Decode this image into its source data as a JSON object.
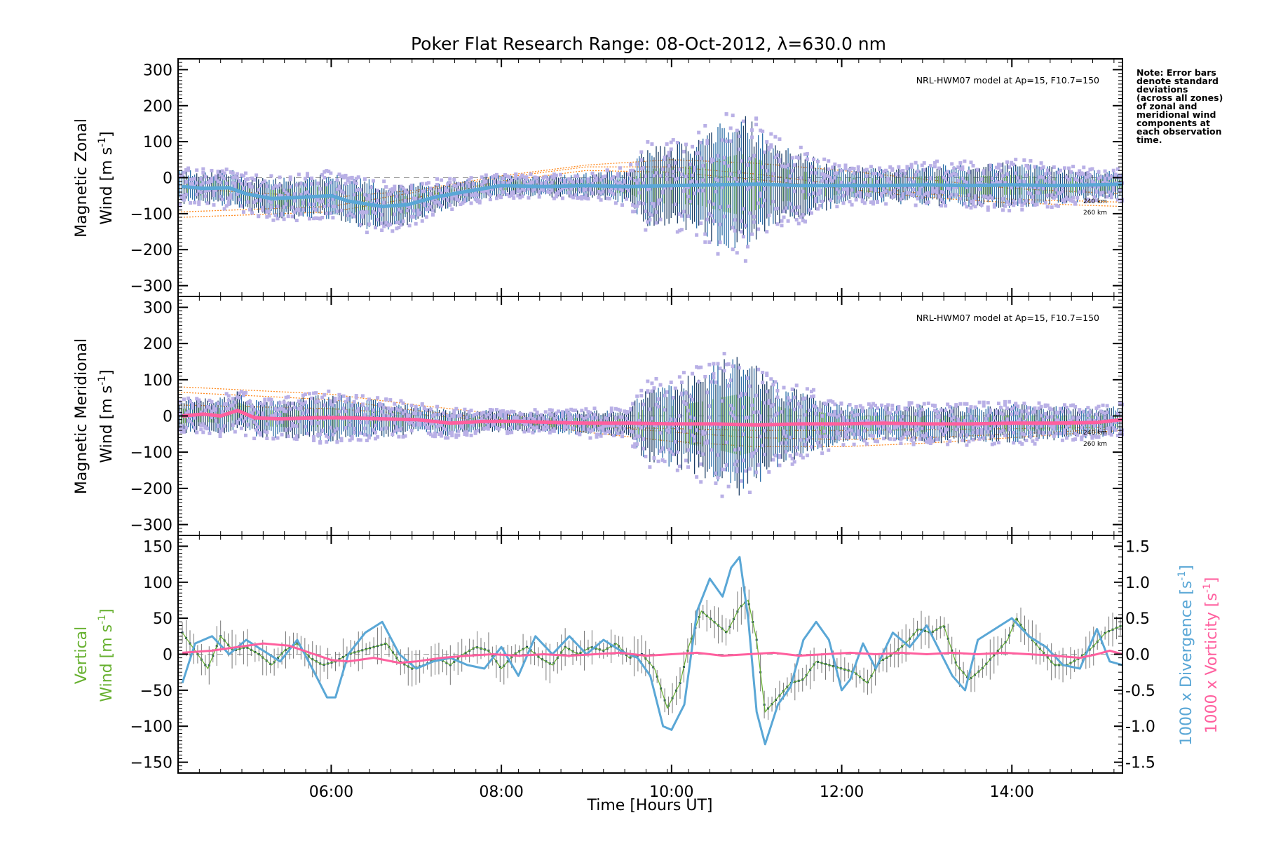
{
  "title": "Poker Flat Research Range: 08-Oct-2012, λ=630.0 nm",
  "note_lines": [
    "Note: Error bars",
    "denote standard",
    "deviations",
    "(across all zones)",
    "of zonal and",
    "meridional wind",
    "components at",
    "each observation",
    "time."
  ],
  "model_label": "NRL-HWM07 model at Ap=15, F10.7=150",
  "altitude_labels": [
    "240 km",
    "260 km"
  ],
  "xlabel": "Time [Hours UT]",
  "colors": {
    "zonal_mean": "#5aa7d6",
    "meridional_mean": "#ff5f9e",
    "scatter": "#b9b0e6",
    "model": "#ff8a1f",
    "vertical": "#66b02e",
    "divergence": "#5aa7d6",
    "vorticity": "#ff5f9e"
  },
  "chart_data": [
    {
      "type": "scatter",
      "panel": "zonal",
      "ylabel_line1": "Magnetic Zonal",
      "ylabel_line2": "Wind [m s",
      "ylabel_sup": "-1",
      "ylabel_tail": "]",
      "xlim": [
        4.2,
        15.3
      ],
      "ylim": [
        -330,
        330
      ],
      "yticks": [
        300,
        200,
        100,
        0,
        -100,
        -200,
        -300
      ],
      "xticks": [
        "06:00",
        "08:00",
        "10:00",
        "12:00",
        "14:00"
      ],
      "xtick_values": [
        6,
        8,
        10,
        12,
        14
      ],
      "mean_series": {
        "x": [
          4.25,
          4.5,
          4.8,
          5.0,
          5.3,
          5.6,
          6.0,
          6.2,
          6.6,
          6.9,
          7.2,
          7.5,
          7.8,
          8.0,
          8.5,
          9.0,
          9.5,
          10.0,
          10.5,
          11.0,
          11.5,
          12.0,
          12.5,
          13.0,
          13.5,
          14.0,
          14.5,
          15.0,
          15.3
        ],
        "y": [
          -25,
          -30,
          -28,
          -45,
          -58,
          -55,
          -50,
          -65,
          -80,
          -75,
          -55,
          -42,
          -30,
          -22,
          -25,
          -22,
          -25,
          -22,
          -20,
          -18,
          -22,
          -22,
          -22,
          -20,
          -22,
          -20,
          -22,
          -20,
          -18
        ]
      },
      "scatter_envelope": {
        "x": [
          4.25,
          5.0,
          5.5,
          6.0,
          6.5,
          7.0,
          7.5,
          8.0,
          8.5,
          9.0,
          9.5,
          9.7,
          10.0,
          10.3,
          10.6,
          10.8,
          11.0,
          11.3,
          11.6,
          12.0,
          12.5,
          13.0,
          13.5,
          14.0,
          14.5,
          15.0,
          15.3
        ],
        "spread": [
          40,
          45,
          50,
          55,
          60,
          45,
          30,
          25,
          25,
          30,
          40,
          95,
          100,
          110,
          150,
          170,
          140,
          90,
          75,
          45,
          40,
          50,
          50,
          55,
          45,
          35,
          35
        ]
      },
      "model_curves": [
        {
          "x": [
            4.25,
            6.0,
            7.0,
            8.0,
            9.0,
            10.0,
            11.0,
            12.0,
            13.0,
            14.0,
            15.3
          ],
          "y": [
            -110,
            -95,
            -55,
            -10,
            20,
            15,
            -5,
            -30,
            -55,
            -70,
            -80
          ]
        },
        {
          "x": [
            4.25,
            6.0,
            7.0,
            8.0,
            9.0,
            10.0,
            11.0,
            12.0,
            13.0,
            14.0,
            15.3
          ],
          "y": [
            -95,
            -80,
            -40,
            0,
            30,
            30,
            10,
            -20,
            -45,
            -60,
            -68
          ]
        },
        {
          "x": [
            4.25,
            6.0,
            7.0,
            8.0,
            9.0,
            10.0,
            11.0,
            12.0,
            13.0,
            14.0,
            15.3
          ],
          "y": [
            -30,
            -55,
            -35,
            5,
            35,
            50,
            40,
            20,
            -5,
            -30,
            -45
          ]
        }
      ]
    },
    {
      "type": "scatter",
      "panel": "meridional",
      "ylabel_line1": "Magnetic Meridional",
      "ylabel_line2": "Wind [m s",
      "ylabel_sup": "-1",
      "ylabel_tail": "]",
      "xlim": [
        4.2,
        15.3
      ],
      "ylim": [
        -330,
        330
      ],
      "yticks": [
        300,
        200,
        100,
        0,
        -100,
        -200,
        -300
      ],
      "mean_series": {
        "x": [
          4.25,
          4.5,
          4.7,
          4.9,
          5.1,
          5.4,
          5.8,
          6.2,
          6.6,
          7.0,
          7.4,
          7.8,
          8.2,
          8.6,
          9.0,
          9.5,
          10.0,
          10.5,
          11.0,
          11.5,
          12.0,
          12.5,
          13.0,
          13.5,
          14.0,
          14.5,
          15.0,
          15.3
        ],
        "y": [
          0,
          5,
          0,
          15,
          -5,
          -8,
          -5,
          -5,
          -8,
          -10,
          -20,
          -15,
          -15,
          -18,
          -20,
          -20,
          -22,
          -22,
          -25,
          -22,
          -22,
          -20,
          -22,
          -22,
          -20,
          -20,
          -18,
          -10
        ]
      },
      "scatter_envelope": {
        "x": [
          4.25,
          5.0,
          5.5,
          6.0,
          6.5,
          7.0,
          7.5,
          8.0,
          8.5,
          9.0,
          9.5,
          9.7,
          10.0,
          10.3,
          10.6,
          10.8,
          11.0,
          11.3,
          11.6,
          12.0,
          12.5,
          13.0,
          13.5,
          14.0,
          14.5,
          15.0,
          15.3
        ],
        "spread": [
          40,
          45,
          45,
          55,
          45,
          35,
          30,
          25,
          25,
          30,
          35,
          90,
          100,
          120,
          150,
          170,
          140,
          90,
          75,
          45,
          40,
          45,
          45,
          45,
          40,
          35,
          35
        ]
      },
      "model_curves": [
        {
          "x": [
            4.25,
            6.0,
            7.0,
            8.0,
            9.0,
            10.0,
            11.0,
            12.0,
            13.0,
            14.0,
            15.3
          ],
          "y": [
            80,
            60,
            30,
            5,
            -25,
            -45,
            -60,
            -65,
            -60,
            -50,
            -35
          ]
        },
        {
          "x": [
            4.25,
            6.0,
            7.0,
            8.0,
            9.0,
            10.0,
            11.0,
            12.0,
            13.0,
            14.0,
            15.3
          ],
          "y": [
            65,
            45,
            15,
            -10,
            -45,
            -70,
            -85,
            -85,
            -75,
            -60,
            -40
          ]
        },
        {
          "x": [
            4.25,
            6.0,
            7.0,
            8.0,
            9.0,
            10.0,
            11.0,
            12.0,
            13.0,
            14.0,
            15.3
          ],
          "y": [
            30,
            20,
            5,
            -15,
            -30,
            -35,
            -40,
            -40,
            -38,
            -35,
            -30
          ]
        }
      ]
    },
    {
      "type": "line",
      "panel": "vertical",
      "ylabel_line1": "Vertical",
      "ylabel_line2": "Wind [m s",
      "ylabel_sup": "-1",
      "ylabel_tail": "]",
      "xlim": [
        4.2,
        15.3
      ],
      "ylim": [
        -165,
        165
      ],
      "yticks": [
        150,
        100,
        50,
        0,
        -50,
        -100,
        -150
      ],
      "xticks": [
        "06:00",
        "08:00",
        "10:00",
        "12:00",
        "14:00"
      ],
      "xtick_values": [
        6,
        8,
        10,
        12,
        14
      ],
      "y2lim": [
        -1.65,
        1.65
      ],
      "y2ticks": [
        "1.5",
        "1.0",
        "0.5",
        "0.0",
        "-0.5",
        "-1.0",
        "-1.5"
      ],
      "y2tick_values": [
        1.5,
        1.0,
        0.5,
        0.0,
        -0.5,
        -1.0,
        -1.5
      ],
      "y2label_div": "1000 x Divergence [s",
      "y2label_vort": "1000 x Vorticity [s",
      "y2label_sup": "-1",
      "y2label_tail": "]",
      "series": [
        {
          "name": "Vertical Wind",
          "x": [
            4.25,
            4.4,
            4.55,
            4.7,
            4.85,
            5.0,
            5.15,
            5.3,
            5.45,
            5.6,
            5.75,
            5.9,
            6.05,
            6.2,
            6.35,
            6.5,
            6.65,
            6.8,
            6.95,
            7.1,
            7.25,
            7.4,
            7.55,
            7.7,
            7.85,
            8.0,
            8.15,
            8.3,
            8.45,
            8.6,
            8.75,
            8.9,
            9.05,
            9.2,
            9.35,
            9.5,
            9.65,
            9.8,
            9.95,
            10.1,
            10.2,
            10.35,
            10.5,
            10.65,
            10.8,
            10.9,
            11.0,
            11.1,
            11.25,
            11.4,
            11.55,
            11.7,
            11.85,
            12.0,
            12.15,
            12.3,
            12.45,
            12.6,
            12.75,
            12.9,
            13.05,
            13.2,
            13.35,
            13.5,
            13.65,
            13.8,
            13.95,
            14.05,
            14.2,
            14.35,
            14.5,
            14.65,
            14.8,
            14.95,
            15.1,
            15.3
          ],
          "y": [
            30,
            5,
            -20,
            25,
            5,
            10,
            0,
            -15,
            5,
            15,
            -5,
            -15,
            -10,
            0,
            5,
            10,
            15,
            -10,
            -20,
            -15,
            -5,
            -15,
            0,
            10,
            5,
            -20,
            0,
            10,
            -5,
            -15,
            10,
            0,
            10,
            5,
            15,
            -5,
            0,
            -20,
            -75,
            -40,
            10,
            60,
            45,
            30,
            65,
            75,
            20,
            -80,
            -60,
            -40,
            -35,
            -10,
            -15,
            -20,
            -25,
            -40,
            -10,
            0,
            15,
            35,
            30,
            40,
            -15,
            -35,
            -20,
            0,
            20,
            50,
            25,
            5,
            -15,
            -15,
            -5,
            10,
            30,
            40
          ]
        },
        {
          "name": "Divergence",
          "axis": "right",
          "x": [
            4.25,
            4.4,
            4.6,
            4.8,
            5.0,
            5.2,
            5.4,
            5.6,
            5.8,
            5.95,
            6.05,
            6.2,
            6.4,
            6.6,
            6.8,
            7.0,
            7.2,
            7.4,
            7.6,
            7.8,
            8.0,
            8.2,
            8.4,
            8.6,
            8.8,
            9.0,
            9.2,
            9.4,
            9.6,
            9.75,
            9.9,
            10.0,
            10.15,
            10.3,
            10.45,
            10.6,
            10.7,
            10.8,
            10.9,
            11.0,
            11.1,
            11.25,
            11.4,
            11.55,
            11.7,
            11.85,
            12.0,
            12.1,
            12.25,
            12.4,
            12.6,
            12.8,
            13.0,
            13.15,
            13.3,
            13.45,
            13.6,
            13.8,
            14.0,
            14.2,
            14.4,
            14.6,
            14.8,
            15.0,
            15.15,
            15.3
          ],
          "y": [
            -0.4,
            0.15,
            0.25,
            0.0,
            0.2,
            0.05,
            -0.1,
            0.2,
            -0.25,
            -0.6,
            -0.6,
            0.0,
            0.3,
            0.45,
            0.0,
            -0.2,
            -0.1,
            -0.05,
            -0.15,
            -0.2,
            0.1,
            -0.3,
            0.25,
            0.0,
            0.25,
            0.0,
            0.2,
            0.05,
            -0.05,
            -0.3,
            -1.0,
            -1.05,
            -0.7,
            0.6,
            1.05,
            0.8,
            1.2,
            1.35,
            0.5,
            -0.8,
            -1.25,
            -0.7,
            -0.45,
            0.2,
            0.45,
            0.2,
            -0.5,
            -0.35,
            0.15,
            -0.2,
            0.3,
            0.1,
            0.4,
            0.05,
            -0.3,
            -0.5,
            0.2,
            0.35,
            0.5,
            0.25,
            0.1,
            -0.15,
            -0.2,
            0.35,
            -0.1,
            -0.15
          ]
        },
        {
          "name": "Vorticity",
          "axis": "right",
          "x": [
            4.25,
            4.6,
            4.9,
            5.2,
            5.5,
            5.8,
            6.0,
            6.2,
            6.5,
            6.8,
            7.0,
            7.3,
            7.6,
            7.9,
            8.2,
            8.5,
            8.8,
            9.1,
            9.4,
            9.7,
            10.0,
            10.3,
            10.6,
            10.9,
            11.2,
            11.5,
            11.8,
            12.1,
            12.4,
            12.7,
            13.0,
            13.3,
            13.6,
            13.9,
            14.2,
            14.5,
            14.8,
            15.0,
            15.15,
            15.3
          ],
          "y": [
            0.02,
            0.05,
            0.1,
            0.15,
            0.12,
            0.0,
            -0.08,
            -0.1,
            -0.05,
            -0.12,
            -0.1,
            -0.05,
            -0.02,
            0.0,
            -0.02,
            0.0,
            -0.02,
            0.0,
            0.02,
            -0.02,
            0.0,
            0.02,
            -0.02,
            0.0,
            0.02,
            -0.02,
            0.0,
            0.02,
            0.0,
            0.02,
            0.0,
            0.02,
            0.0,
            0.02,
            0.0,
            -0.02,
            -0.05,
            0.0,
            0.05,
            0.0
          ]
        }
      ]
    }
  ]
}
